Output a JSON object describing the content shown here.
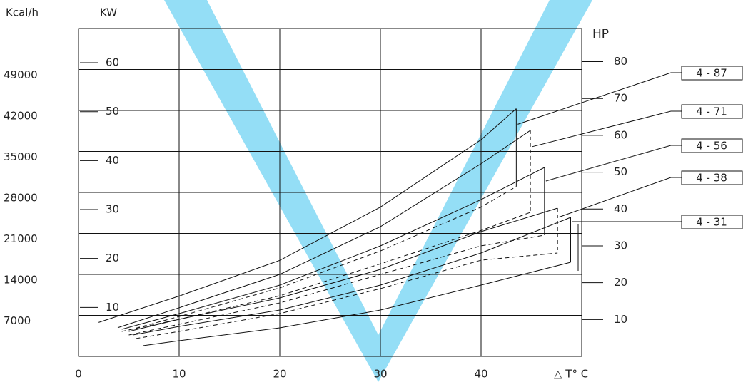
{
  "chart_data": {
    "type": "line",
    "x_label": "△ T° C",
    "y_label": "Kcal/h",
    "y2_label": "KW",
    "y3_label": "HP",
    "xlim": [
      0,
      50
    ],
    "xticks": [
      0,
      10,
      20,
      30,
      40
    ],
    "ylim": [
      0,
      56000
    ],
    "yticks": [
      7000,
      14000,
      21000,
      28000,
      35000,
      42000,
      49000
    ],
    "y2lim": [
      0,
      67
    ],
    "y2ticks": [
      10,
      20,
      30,
      40,
      50,
      60
    ],
    "y3lim": [
      0,
      89
    ],
    "y3ticks": [
      10,
      20,
      30,
      40,
      50,
      60,
      70,
      80
    ],
    "grid": true,
    "color": "#111111",
    "series": [
      {
        "name": "4 - 87",
        "x": [
          2,
          10,
          20,
          30,
          40,
          43.5
        ],
        "values": [
          5800,
          10300,
          16400,
          25500,
          37000,
          42300
        ],
        "lower_x": [
          5,
          10,
          20,
          30,
          40,
          43.5
        ],
        "lower_values": [
          4500,
          6800,
          11700,
          18000,
          25500,
          29000
        ]
      },
      {
        "name": "4 - 71",
        "x": [
          3.9,
          10,
          20,
          30,
          40,
          44.9
        ],
        "values": [
          4900,
          8300,
          14000,
          22150,
          32900,
          38600
        ],
        "lower_x": [
          4.3,
          10,
          20,
          30,
          40,
          44.9
        ],
        "lower_values": [
          4260,
          6330,
          10350,
          15800,
          21500,
          24600
        ]
      },
      {
        "name": "4 - 56",
        "x": [
          4.3,
          10,
          20,
          30,
          40,
          46.3
        ],
        "values": [
          4630,
          7300,
          12170,
          18870,
          26780,
          32260
        ],
        "lower_x": [
          5,
          10,
          20,
          30,
          40,
          46.3
        ],
        "lower_values": [
          3650,
          5480,
          9130,
          14000,
          18870,
          20700
        ]
      },
      {
        "name": "4 - 38",
        "x": [
          5,
          10,
          20,
          30,
          40,
          47.6
        ],
        "values": [
          4260,
          6330,
          9980,
          14850,
          21300,
          25320
        ],
        "lower_x": [
          5.7,
          10,
          20,
          30,
          40,
          47.6
        ],
        "lower_values": [
          3040,
          4260,
          7300,
          11570,
          16430,
          17650
        ]
      },
      {
        "name": "4 - 31",
        "x": [
          5.4,
          10,
          20,
          30,
          40,
          48.9
        ],
        "values": [
          3650,
          5110,
          7910,
          12170,
          17650,
          23740
        ],
        "lower_x": [
          6.4,
          10,
          20,
          30,
          40,
          48.9
        ],
        "lower_values": [
          1830,
          2680,
          4870,
          7910,
          12170,
          16070
        ]
      }
    ]
  }
}
